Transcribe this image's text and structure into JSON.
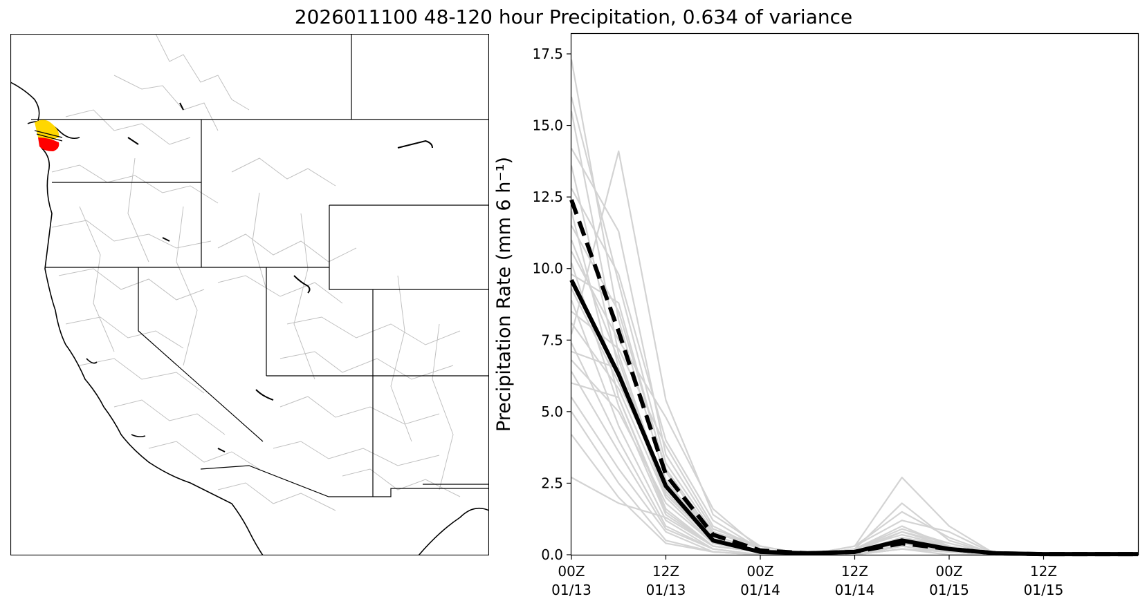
{
  "title": "2026011100 48-120 hour Precipitation, 0.634 of variance",
  "map": {
    "region": "Western United States",
    "highlight_colors": {
      "primary": "#ff0000",
      "secondary": "#ffd700",
      "outline": "#000000"
    },
    "basin_line_color": "#bdbdbd"
  },
  "chart_data": {
    "type": "line",
    "ylabel": "Precipitation Rate (mm 6 h⁻¹)",
    "xlim": [
      0,
      72
    ],
    "ylim": [
      0,
      18.2
    ],
    "yticks": [
      0.0,
      2.5,
      5.0,
      7.5,
      10.0,
      12.5,
      15.0,
      17.5
    ],
    "ytick_labels": [
      "0.0",
      "2.5",
      "5.0",
      "7.5",
      "10.0",
      "12.5",
      "15.0",
      "17.5"
    ],
    "xticks": [
      0,
      12,
      24,
      36,
      48,
      60
    ],
    "xtick_labels": [
      [
        "00Z",
        "01/13"
      ],
      [
        "12Z",
        "01/13"
      ],
      [
        "00Z",
        "01/14"
      ],
      [
        "12Z",
        "01/14"
      ],
      [
        "00Z",
        "01/15"
      ],
      [
        "12Z",
        "01/15"
      ]
    ],
    "x": [
      0,
      6,
      12,
      18,
      24,
      30,
      36,
      42,
      48,
      54,
      60,
      66,
      72
    ],
    "series": [
      {
        "style": "solid-black-thick",
        "color": "#000000",
        "values": [
          9.6,
          6.3,
          2.4,
          0.5,
          0.1,
          0.05,
          0.1,
          0.5,
          0.2,
          0.05,
          0.02,
          0.02,
          0.02
        ]
      },
      {
        "style": "dashed-black-thick",
        "color": "#000000",
        "values": [
          12.4,
          7.8,
          2.8,
          0.7,
          0.15,
          0.05,
          0.1,
          0.4,
          0.2,
          0.05,
          0.02,
          0.02,
          0.02
        ]
      }
    ],
    "ensemble": {
      "color": "#d3d3d3",
      "members": [
        [
          17.3,
          8.2,
          2.6,
          0.6,
          0.1,
          0.0,
          0.1,
          0.5,
          0.2,
          0.0,
          0.0,
          0.0,
          0.0
        ],
        [
          16.0,
          9.5,
          3.2,
          0.8,
          0.2,
          0.0,
          0.2,
          0.8,
          0.3,
          0.0,
          0.0,
          0.0,
          0.0
        ],
        [
          15.5,
          7.0,
          2.2,
          0.5,
          0.1,
          0.0,
          0.1,
          0.4,
          0.2,
          0.0,
          0.0,
          0.0,
          0.0
        ],
        [
          14.2,
          11.3,
          3.5,
          0.9,
          0.3,
          0.0,
          0.1,
          0.6,
          0.3,
          0.0,
          0.0,
          0.0,
          0.0
        ],
        [
          13.6,
          6.5,
          2.0,
          0.4,
          0.1,
          0.0,
          0.0,
          0.3,
          0.1,
          0.0,
          0.0,
          0.0,
          0.0
        ],
        [
          12.8,
          9.8,
          4.0,
          1.2,
          0.2,
          0.0,
          0.3,
          1.5,
          0.6,
          0.0,
          0.0,
          0.0,
          0.0
        ],
        [
          12.0,
          5.5,
          1.6,
          0.3,
          0.1,
          0.0,
          0.0,
          0.2,
          0.1,
          0.0,
          0.0,
          0.0,
          0.0
        ],
        [
          11.5,
          8.5,
          3.0,
          0.7,
          0.1,
          0.0,
          0.2,
          0.9,
          0.4,
          0.0,
          0.0,
          0.0,
          0.0
        ],
        [
          11.0,
          6.8,
          2.1,
          0.5,
          0.1,
          0.0,
          0.1,
          0.4,
          0.2,
          0.0,
          0.0,
          0.0,
          0.0
        ],
        [
          10.6,
          7.5,
          4.8,
          1.6,
          0.2,
          0.0,
          0.3,
          1.2,
          0.8,
          0.0,
          0.0,
          0.0,
          0.0
        ],
        [
          10.2,
          5.2,
          1.4,
          0.3,
          0.1,
          0.0,
          0.1,
          0.5,
          0.2,
          0.0,
          0.0,
          0.0,
          0.0
        ],
        [
          9.8,
          8.8,
          2.9,
          0.6,
          0.1,
          0.0,
          0.2,
          0.7,
          0.3,
          0.0,
          0.0,
          0.0,
          0.0
        ],
        [
          9.3,
          6.0,
          2.5,
          0.8,
          0.3,
          0.0,
          0.3,
          2.7,
          1.0,
          0.0,
          0.0,
          0.0,
          0.0
        ],
        [
          8.9,
          4.5,
          1.2,
          0.2,
          0.0,
          0.0,
          0.1,
          0.3,
          0.1,
          0.0,
          0.0,
          0.0,
          0.0
        ],
        [
          8.5,
          7.2,
          3.8,
          1.0,
          0.2,
          0.0,
          0.2,
          1.8,
          0.5,
          0.0,
          0.0,
          0.0,
          0.0
        ],
        [
          8.1,
          5.8,
          2.0,
          0.4,
          0.1,
          0.0,
          0.1,
          0.6,
          0.2,
          0.0,
          0.0,
          0.0,
          0.0
        ],
        [
          7.7,
          14.1,
          5.4,
          1.4,
          0.3,
          0.0,
          0.1,
          0.8,
          0.4,
          0.0,
          0.0,
          0.0,
          0.0
        ],
        [
          7.4,
          4.0,
          1.0,
          0.2,
          0.0,
          0.0,
          0.0,
          0.2,
          0.1,
          0.0,
          0.0,
          0.0,
          0.0
        ],
        [
          7.1,
          6.5,
          2.3,
          0.6,
          0.1,
          0.0,
          0.2,
          1.0,
          0.3,
          0.0,
          0.0,
          0.0,
          0.0
        ],
        [
          6.8,
          5.0,
          1.8,
          0.4,
          0.1,
          0.0,
          0.1,
          0.5,
          0.2,
          0.0,
          0.0,
          0.0,
          0.0
        ],
        [
          6.4,
          3.6,
          0.9,
          0.2,
          0.0,
          0.0,
          0.1,
          0.4,
          0.1,
          0.0,
          0.0,
          0.0,
          0.0
        ],
        [
          6.0,
          5.5,
          1.5,
          0.3,
          0.1,
          0.0,
          0.1,
          0.6,
          0.2,
          0.0,
          0.0,
          0.0,
          0.0
        ],
        [
          5.5,
          3.0,
          0.8,
          0.1,
          0.0,
          0.0,
          0.0,
          0.3,
          0.1,
          0.0,
          0.0,
          0.0,
          0.0
        ],
        [
          5.0,
          2.5,
          0.5,
          0.1,
          0.0,
          0.0,
          0.0,
          0.2,
          0.1,
          0.0,
          0.0,
          0.0,
          0.0
        ],
        [
          4.2,
          2.0,
          0.4,
          0.1,
          0.0,
          0.0,
          0.0,
          0.2,
          0.0,
          0.0,
          0.0,
          0.0,
          0.0
        ],
        [
          2.7,
          1.8,
          1.3,
          0.3,
          0.1,
          0.0,
          0.0,
          0.3,
          0.1,
          0.0,
          0.0,
          0.0,
          0.0
        ]
      ]
    }
  }
}
